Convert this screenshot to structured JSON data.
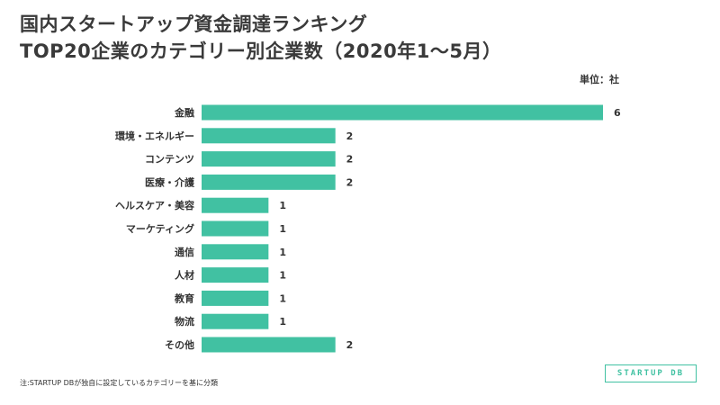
{
  "title_line1": "国内スタートアップ資金調達ランキング",
  "title_line2": "TOP20企業のカテゴリー別企業数（2020年1〜5月）",
  "unit": "単位：社",
  "note": "注:STARTUP DBが独自に設定しているカテゴリーを基に分類",
  "logo_text": "STARTUP DB",
  "colors": {
    "bar": "#41c1a2",
    "text": "#333333"
  },
  "chart_data": {
    "type": "bar",
    "orientation": "horizontal",
    "categories": [
      "金融",
      "環境・エネルギー",
      "コンテンツ",
      "医療・介護",
      "ヘルスケア・美容",
      "マーケティング",
      "通信",
      "人材",
      "教育",
      "物流",
      "その他"
    ],
    "values": [
      6,
      2,
      2,
      2,
      1,
      1,
      1,
      1,
      1,
      1,
      2
    ],
    "xlim": [
      0,
      6
    ],
    "grid": false,
    "legend": "none"
  }
}
